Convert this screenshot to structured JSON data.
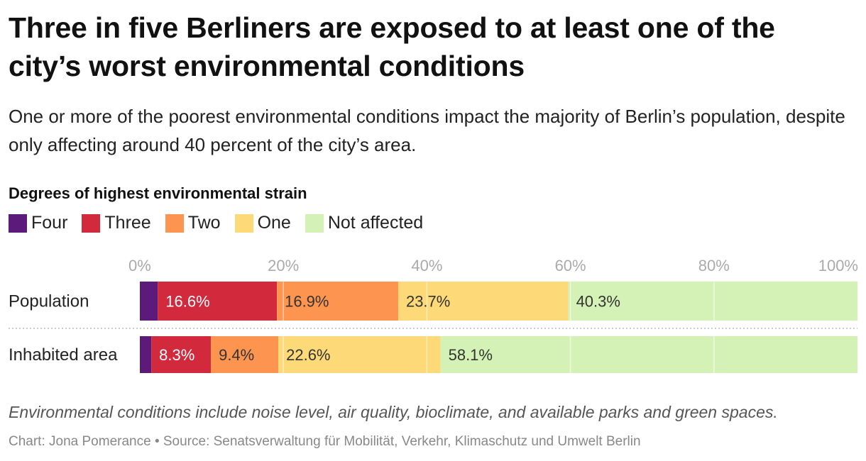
{
  "title": "Three in five Berliners are exposed to at least one of the city’s worst environmental conditions",
  "subtitle": "One or more of the poorest environmental conditions impact the majority of Berlin’s population, despite only affecting around 40 percent of the city’s area.",
  "legend_title": "Degrees of highest environmental strain",
  "note": "Environmental conditions include noise level, air quality, bioclimate, and available parks and green spaces.",
  "credit": "Chart: Jona Pomerance • Source: Senatsverwaltung für Mobilität, Verkehr, Klimaschutz und Umwelt Berlin",
  "colors": {
    "Four": "#5c1a7a",
    "Three": "#d22a3c",
    "Two": "#fd9550",
    "One": "#fed977",
    "Not affected": "#d4f2b5"
  },
  "chart_data": {
    "type": "bar",
    "orientation": "horizontal",
    "stacked": true,
    "categories": [
      "Population",
      "Inhabited area"
    ],
    "series": [
      {
        "name": "Four",
        "values": [
          2.5,
          1.6
        ]
      },
      {
        "name": "Three",
        "values": [
          16.6,
          8.3
        ]
      },
      {
        "name": "Two",
        "values": [
          16.9,
          9.4
        ]
      },
      {
        "name": "One",
        "values": [
          23.7,
          22.6
        ]
      },
      {
        "name": "Not affected",
        "values": [
          40.3,
          58.1
        ]
      }
    ],
    "xlim": [
      0,
      100
    ],
    "ticks": [
      "0%",
      "20%",
      "40%",
      "60%",
      "80%",
      "100%"
    ],
    "tick_values": [
      0,
      20,
      40,
      60,
      80,
      100
    ]
  }
}
